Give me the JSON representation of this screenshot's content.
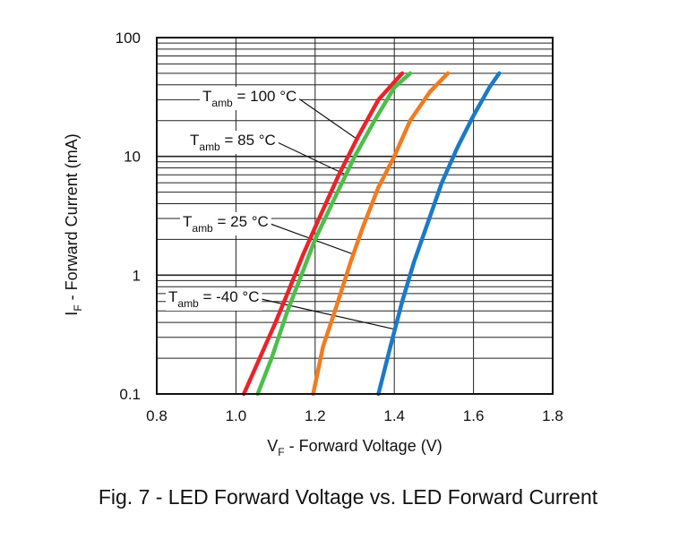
{
  "chart_data": {
    "type": "line",
    "title": "",
    "xlabel": {
      "main": "V",
      "sub": "F",
      "rest": " - Forward Voltage (V)"
    },
    "ylabel": {
      "main": "I",
      "sub": "F",
      "rest": " - Forward Current (mA)"
    },
    "xlim": [
      0.8,
      1.8
    ],
    "ylim": [
      0.1,
      100
    ],
    "yscale": "log",
    "grid": true,
    "x_ticks": [
      "0.8",
      "1.0",
      "1.2",
      "1.4",
      "1.6",
      "1.8"
    ],
    "y_ticks": [
      "0.1",
      "1",
      "10",
      "100"
    ],
    "series": [
      {
        "name": "100 °C",
        "color": "#e8242a",
        "x": [
          1.02,
          1.06,
          1.1,
          1.13,
          1.17,
          1.21,
          1.26,
          1.31,
          1.36,
          1.42
        ],
        "y": [
          0.1,
          0.2,
          0.4,
          0.7,
          1.5,
          3,
          7,
          15,
          30,
          50
        ]
      },
      {
        "name": "85 °C",
        "color": "#4cbf4a",
        "x": [
          1.055,
          1.09,
          1.13,
          1.16,
          1.2,
          1.25,
          1.3,
          1.35,
          1.4,
          1.44
        ],
        "y": [
          0.1,
          0.2,
          0.5,
          0.9,
          2,
          4.5,
          10,
          20,
          38,
          50
        ]
      },
      {
        "name": "25 °C",
        "color": "#f07c22",
        "x": [
          1.195,
          1.22,
          1.25,
          1.29,
          1.32,
          1.36,
          1.4,
          1.44,
          1.49,
          1.535
        ],
        "y": [
          0.1,
          0.25,
          0.5,
          1.3,
          2.5,
          5.5,
          10,
          20,
          35,
          50
        ]
      },
      {
        "name": "-40 °C",
        "color": "#1b7ac8",
        "x": [
          1.36,
          1.39,
          1.42,
          1.45,
          1.48,
          1.52,
          1.56,
          1.6,
          1.64,
          1.665
        ],
        "y": [
          0.1,
          0.25,
          0.6,
          1.3,
          2.5,
          6,
          12,
          22,
          38,
          50
        ]
      }
    ],
    "callouts": [
      {
        "main": "T",
        "sub": "amb",
        "rest": " = 100 °C",
        "series": 0,
        "at_y": 14
      },
      {
        "main": "T",
        "sub": "amb",
        "rest": " = 85 °C",
        "series": 1,
        "at_y": 7
      },
      {
        "main": "T",
        "sub": "amb",
        "rest": " = 25 °C",
        "series": 2,
        "at_y": 1.5
      },
      {
        "main": "T",
        "sub": "amb",
        "rest": " = -40 °C",
        "series": 3,
        "at_y": 0.35
      }
    ]
  },
  "caption": "Fig. 7 - LED Forward Voltage vs. LED Forward Current"
}
